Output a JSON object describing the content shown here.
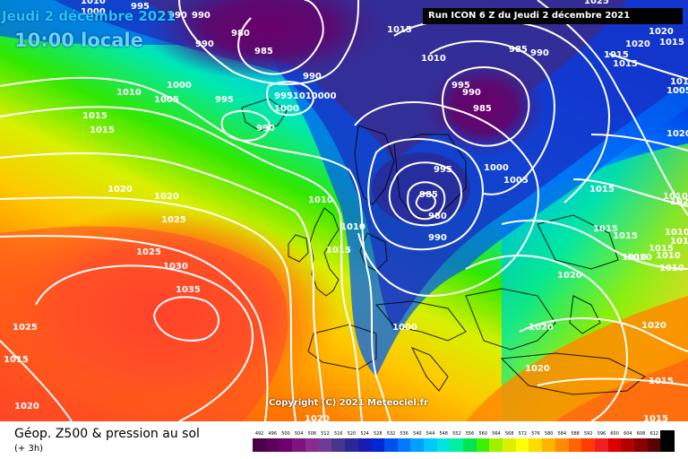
{
  "header": {
    "date": "Jeudi 2 décembre 2021",
    "time": "10:00 locale",
    "run": "Run ICON 6 Z du Jeudi 2 décembre 2021"
  },
  "copyright": "Copyright (C) 2021 Meteociel.fr",
  "legend": {
    "title": "Géop. Z500 & pression au sol",
    "subtitle": "(+ 3h)",
    "scale": [
      {
        "label": "492",
        "color": "#4a004a"
      },
      {
        "label": "496",
        "color": "#5c005c"
      },
      {
        "label": "500",
        "color": "#6e006e"
      },
      {
        "label": "504",
        "color": "#7d1480"
      },
      {
        "label": "508",
        "color": "#8a2a8e"
      },
      {
        "label": "512",
        "color": "#703b96"
      },
      {
        "label": "516",
        "color": "#46368c"
      },
      {
        "label": "520",
        "color": "#2a2a96"
      },
      {
        "label": "524",
        "color": "#1a1ab4"
      },
      {
        "label": "528",
        "color": "#0028d2"
      },
      {
        "label": "532",
        "color": "#0050f0"
      },
      {
        "label": "536",
        "color": "#0078ff"
      },
      {
        "label": "540",
        "color": "#00a0ff"
      },
      {
        "label": "544",
        "color": "#00c8ff"
      },
      {
        "label": "548",
        "color": "#00e6dc"
      },
      {
        "label": "552",
        "color": "#00f0a0"
      },
      {
        "label": "556",
        "color": "#00e650"
      },
      {
        "label": "560",
        "color": "#3cf000"
      },
      {
        "label": "564",
        "color": "#a0f000"
      },
      {
        "label": "568",
        "color": "#dcf000"
      },
      {
        "label": "572",
        "color": "#ffff00"
      },
      {
        "label": "576",
        "color": "#ffdc00"
      },
      {
        "label": "580",
        "color": "#ffb400"
      },
      {
        "label": "584",
        "color": "#ff8c00"
      },
      {
        "label": "588",
        "color": "#ff6400"
      },
      {
        "label": "592",
        "color": "#ff3c00"
      },
      {
        "label": "596",
        "color": "#f01e1e"
      },
      {
        "label": "600",
        "color": "#dc0000"
      },
      {
        "label": "604",
        "color": "#b40000"
      },
      {
        "label": "608",
        "color": "#8c0000"
      },
      {
        "label": "612",
        "color": "#5a0000"
      },
      {
        "label": "",
        "color": "#000000"
      }
    ]
  },
  "isobars": [
    {
      "label": "1000",
      "tone": "white"
    },
    {
      "label": "990",
      "tone": "white"
    },
    {
      "label": "990",
      "tone": "white"
    },
    {
      "label": "980",
      "tone": "white"
    },
    {
      "label": "985",
      "tone": "white"
    },
    {
      "label": "990",
      "tone": "white"
    },
    {
      "label": "995",
      "tone": "white"
    },
    {
      "label": "995",
      "tone": "white"
    },
    {
      "label": "990",
      "tone": "white"
    },
    {
      "label": "1000",
      "tone": "white"
    },
    {
      "label": "1015",
      "tone": "white"
    },
    {
      "label": "1010",
      "tone": "white"
    },
    {
      "label": "1010",
      "tone": "white"
    },
    {
      "label": "1005",
      "tone": "white"
    },
    {
      "label": "1000",
      "tone": "white"
    },
    {
      "label": "1015",
      "tone": "white"
    },
    {
      "label": "1015",
      "tone": "white"
    },
    {
      "label": "1020",
      "tone": "white"
    },
    {
      "label": "1020",
      "tone": "white"
    },
    {
      "label": "1025",
      "tone": "white"
    },
    {
      "label": "1025",
      "tone": "white"
    },
    {
      "label": "1030",
      "tone": "white"
    },
    {
      "label": "1035",
      "tone": "white"
    },
    {
      "label": "1025",
      "tone": "white"
    },
    {
      "label": "1020",
      "tone": "white"
    },
    {
      "label": "990",
      "tone": "white"
    },
    {
      "label": "9951010000",
      "tone": "white"
    },
    {
      "label": "1010",
      "tone": "white"
    },
    {
      "label": "1015",
      "tone": "white"
    },
    {
      "label": "985",
      "tone": "white"
    },
    {
      "label": "980",
      "tone": "white"
    },
    {
      "label": "990",
      "tone": "white"
    },
    {
      "label": "995",
      "tone": "white"
    },
    {
      "label": "985",
      "tone": "white"
    },
    {
      "label": "990",
      "tone": "white"
    },
    {
      "label": "995",
      "tone": "white"
    },
    {
      "label": "990",
      "tone": "white"
    },
    {
      "label": "985",
      "tone": "white"
    },
    {
      "label": "1000",
      "tone": "white"
    },
    {
      "label": "1005",
      "tone": "white"
    },
    {
      "label": "1000",
      "tone": "white"
    },
    {
      "label": "1015",
      "tone": "white"
    },
    {
      "label": "1010",
      "tone": "white"
    },
    {
      "label": "1015",
      "tone": "white"
    },
    {
      "label": "1010",
      "tone": "white"
    },
    {
      "label": "1020",
      "tone": "white"
    },
    {
      "label": "1020",
      "tone": "white"
    },
    {
      "label": "1015",
      "tone": "white"
    },
    {
      "label": "1020",
      "tone": "white"
    },
    {
      "label": "1015",
      "tone": "white"
    },
    {
      "label": "1010",
      "tone": "white"
    },
    {
      "label": "1010",
      "tone": "white"
    },
    {
      "label": "1010",
      "tone": "white"
    },
    {
      "label": "1015",
      "tone": "white"
    },
    {
      "label": "1015",
      "tone": "white"
    },
    {
      "label": "1015",
      "tone": "white"
    },
    {
      "label": "1020",
      "tone": "white"
    },
    {
      "label": "1020",
      "tone": "white"
    },
    {
      "label": "1020",
      "tone": "white"
    },
    {
      "label": "1025",
      "tone": "white"
    },
    {
      "label": "1015",
      "tone": "white"
    },
    {
      "label": "1010",
      "tone": "white"
    },
    {
      "label": "1005",
      "tone": "white"
    },
    {
      "label": "1020",
      "tone": "white"
    },
    {
      "label": "1020",
      "tone": "white"
    },
    {
      "label": "1010",
      "tone": "white"
    },
    {
      "label": "1015",
      "tone": "white"
    },
    {
      "label": "1010",
      "tone": "white"
    },
    {
      "label": "1020",
      "tone": "white"
    },
    {
      "label": "1010",
      "tone": "white"
    },
    {
      "label": "1015",
      "tone": "white"
    },
    {
      "label": "1010",
      "tone": "white"
    }
  ]
}
